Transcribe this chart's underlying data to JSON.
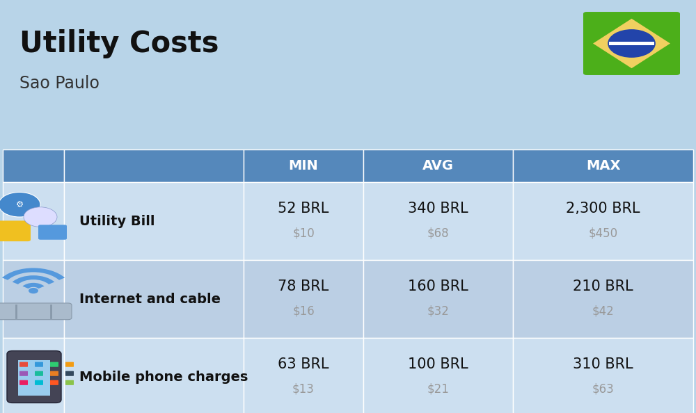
{
  "title": "Utility Costs",
  "subtitle": "Sao Paulo",
  "background_color": "#b8d4e8",
  "header_bg_color": "#5588bb",
  "header_text_color": "#ffffff",
  "row_bg_color_odd": "#ccdff0",
  "row_bg_color_even": "#bbcfe4",
  "rows": [
    {
      "label": "Utility Bill",
      "min_brl": "52 BRL",
      "min_usd": "$10",
      "avg_brl": "340 BRL",
      "avg_usd": "$68",
      "max_brl": "2,300 BRL",
      "max_usd": "$450"
    },
    {
      "label": "Internet and cable",
      "min_brl": "78 BRL",
      "min_usd": "$16",
      "avg_brl": "160 BRL",
      "avg_usd": "$32",
      "max_brl": "210 BRL",
      "max_usd": "$42"
    },
    {
      "label": "Mobile phone charges",
      "min_brl": "63 BRL",
      "min_usd": "$13",
      "avg_brl": "100 BRL",
      "avg_usd": "$21",
      "max_brl": "310 BRL",
      "max_usd": "$63"
    }
  ],
  "title_fontsize": 30,
  "subtitle_fontsize": 17,
  "header_fontsize": 14,
  "label_fontsize": 14,
  "value_fontsize": 15,
  "usd_fontsize": 12,
  "fig_width": 10.0,
  "fig_height": 5.94
}
